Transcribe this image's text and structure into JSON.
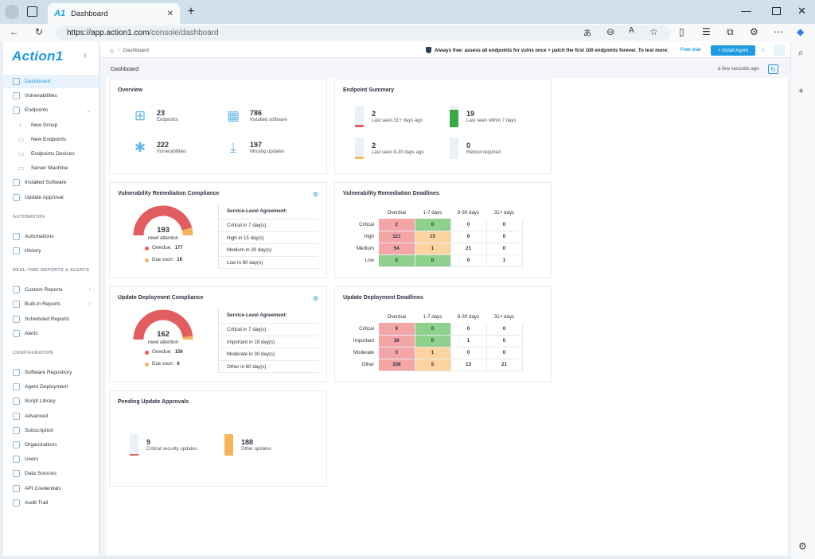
{
  "browser": {
    "tab_title": "Dashboard",
    "tab_logo": "A1",
    "url_prefix": "https://",
    "url_host": "app.action1.com",
    "url_path": "/console/dashboard"
  },
  "brand": "Action1",
  "sidebar": {
    "items": [
      {
        "label": "Dashboard",
        "icon": "monitor-icon",
        "active": true
      },
      {
        "label": "Vulnerabilities",
        "icon": "bug-icon"
      },
      {
        "label": "Endpoints",
        "icon": "endpoints-icon",
        "chevron": "⌄"
      },
      {
        "label": "New Group",
        "icon": "plus-icon",
        "sub": true
      },
      {
        "label": "New Endpoints",
        "icon": "folder-icon",
        "sub": true
      },
      {
        "label": "Endpoints Devices",
        "icon": "folder-icon",
        "sub": true
      },
      {
        "label": "Server Machine",
        "icon": "folder-icon",
        "sub": true
      },
      {
        "label": "Installed Software",
        "icon": "software-icon"
      },
      {
        "label": "Update Approval",
        "icon": "approval-icon"
      }
    ],
    "automation_heading": "AUTOMATION",
    "automation": [
      {
        "label": "Automations",
        "icon": "calendar-icon"
      },
      {
        "label": "History",
        "icon": "history-icon"
      }
    ],
    "reports_heading": "REAL-TIME REPORTS & ALERTS",
    "reports": [
      {
        "label": "Custom Reports",
        "icon": "report-icon",
        "chevron": "›"
      },
      {
        "label": "Built-in Reports",
        "icon": "report-icon",
        "chevron": "›"
      },
      {
        "label": "Scheduled Reports",
        "icon": "schedule-icon"
      },
      {
        "label": "Alerts",
        "icon": "alert-icon"
      }
    ],
    "config_heading": "CONFIGURATION",
    "config": [
      {
        "label": "Software Repository",
        "icon": "repository-icon"
      },
      {
        "label": "Agent Deployment",
        "icon": "deploy-icon"
      },
      {
        "label": "Script Library",
        "icon": "script-icon"
      },
      {
        "label": "Advanced",
        "icon": "advanced-icon"
      },
      {
        "label": "Subscription",
        "icon": "subscription-icon"
      },
      {
        "label": "Organizations",
        "icon": "org-icon"
      },
      {
        "label": "Users",
        "icon": "users-icon"
      },
      {
        "label": "Data Sources",
        "icon": "datasource-icon"
      },
      {
        "label": "API Credentials",
        "icon": "api-icon"
      },
      {
        "label": "Audit Trail",
        "icon": "audit-icon"
      }
    ]
  },
  "topbar": {
    "breadcrumb": "Dashboard",
    "promo": "Always free: assess all endpoints for vulns once + patch the first 100 endpoints forever. To test more:",
    "free_trial": "Free trial",
    "install_agent": "+ Install Agent"
  },
  "page": {
    "title": "Dashboard",
    "updated": "a few seconds ago"
  },
  "overview": {
    "title": "Overview",
    "stats": [
      {
        "value": "23",
        "label": "Endpoints"
      },
      {
        "value": "786",
        "label": "Installed software"
      },
      {
        "value": "222",
        "label": "Vulnerabilities"
      },
      {
        "value": "197",
        "label": "Missing updates"
      }
    ]
  },
  "endpoint_summary": {
    "title": "Endpoint Summary",
    "stats": [
      {
        "value": "2",
        "label": "Last seen 31+ days ago",
        "fill": 0.1,
        "color": "#e25d5d"
      },
      {
        "value": "19",
        "label": "Last seen within 7 days",
        "fill": 0.83,
        "color": "#3aa845"
      },
      {
        "value": "2",
        "label": "Last seen 8-30 days ago",
        "fill": 0.1,
        "color": "#f7b45b"
      },
      {
        "value": "0",
        "label": "Reboot required",
        "fill": 0,
        "color": "#e25d5d"
      }
    ]
  },
  "vuln_compliance": {
    "title": "Vulnerability Remediation Compliance",
    "total": "193",
    "need": "need attention",
    "overdue_label": "Overdue:",
    "overdue": "177",
    "due_label": "Due soon:",
    "due": "16",
    "overdue_frac": 0.917,
    "sla_title": "Service-Level Agreement:",
    "sla": [
      "Critical in 7 day(s)",
      "High in 15 day(s)",
      "Medium in 30 day(s)",
      "Low in 60 day(s)"
    ]
  },
  "vuln_deadlines": {
    "title": "Vulnerability Remediation Deadlines",
    "cols": [
      "Overdue",
      "1-7 days",
      "8-30 days",
      "31+ days"
    ],
    "rows": [
      {
        "label": "Critical",
        "vals": [
          "2",
          "0",
          "0",
          "0"
        ]
      },
      {
        "label": "High",
        "vals": [
          "121",
          "15",
          "6",
          "0"
        ]
      },
      {
        "label": "Medium",
        "vals": [
          "54",
          "1",
          "21",
          "0"
        ]
      },
      {
        "label": "Low",
        "vals": [
          "0",
          "0",
          "0",
          "1"
        ]
      }
    ]
  },
  "update_compliance": {
    "title": "Update Deployment Compliance",
    "total": "162",
    "need": "need attention",
    "overdue_label": "Overdue:",
    "overdue": "156",
    "due_label": "Due soon:",
    "due": "6",
    "overdue_frac": 0.963,
    "sla_title": "Service-Level Agreement:",
    "sla": [
      "Critical in 7 day(s)",
      "Important in 15 day(s)",
      "Moderate in 30 day(s)",
      "Other in 60 day(s)"
    ]
  },
  "update_deadlines": {
    "title": "Update Deployment Deadlines",
    "cols": [
      "Overdue",
      "1-7 days",
      "8-30 days",
      "31+ days"
    ],
    "rows": [
      {
        "label": "Critical",
        "vals": [
          "9",
          "0",
          "0",
          "0"
        ]
      },
      {
        "label": "Important",
        "vals": [
          "36",
          "0",
          "1",
          "0"
        ]
      },
      {
        "label": "Moderate",
        "vals": [
          "3",
          "1",
          "0",
          "0"
        ]
      },
      {
        "label": "Other",
        "vals": [
          "108",
          "5",
          "13",
          "21"
        ]
      }
    ]
  },
  "pending": {
    "title": "Pending Update Approvals",
    "stats": [
      {
        "value": "9",
        "label": "Critical security updates",
        "fill": 0.05,
        "color": "#e25d5d"
      },
      {
        "value": "188",
        "label": "Other updates",
        "fill": 1,
        "color": "#f7b45b"
      }
    ]
  },
  "colors": {
    "accent": "#1e9be0",
    "red": "#e25d5d",
    "orange": "#f7b45b",
    "green": "#3aa845"
  }
}
